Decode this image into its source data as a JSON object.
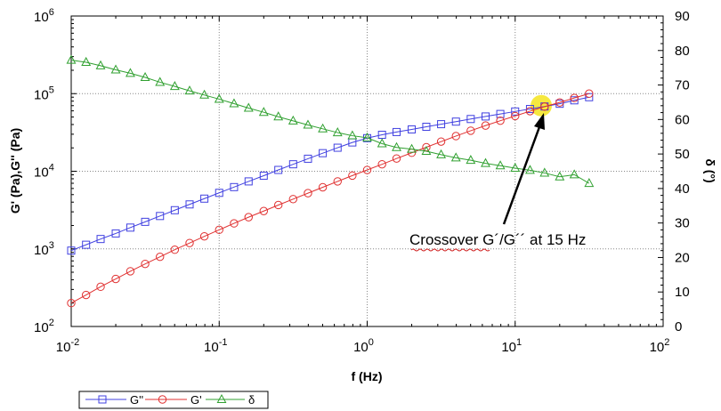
{
  "chart_data": {
    "type": "scatter",
    "xlabel": "f (Hz)",
    "ylabel": "G' (Pa),G'' (Pa)",
    "y2label": "δ (°)",
    "xscale": "log",
    "yscale": "log",
    "xlim": [
      0.01,
      100
    ],
    "ylim": [
      100,
      1000000
    ],
    "y2lim": [
      0,
      90
    ],
    "grid": true,
    "legend_position": "bottom-left",
    "x_ticks": [
      {
        "base": "10",
        "exp": "-2"
      },
      {
        "base": "10",
        "exp": "-1"
      },
      {
        "base": "10",
        "exp": "0"
      },
      {
        "base": "10",
        "exp": "1"
      },
      {
        "base": "10",
        "exp": "2"
      }
    ],
    "y_ticks": [
      {
        "base": "10",
        "exp": "2"
      },
      {
        "base": "10",
        "exp": "3"
      },
      {
        "base": "10",
        "exp": "4"
      },
      {
        "base": "10",
        "exp": "5"
      },
      {
        "base": "10",
        "exp": "6"
      }
    ],
    "y2_ticks": [
      "0",
      "10",
      "20",
      "30",
      "40",
      "50",
      "60",
      "70",
      "80",
      "90"
    ],
    "series": [
      {
        "name": "G''",
        "color": "#4040e0",
        "marker": "square",
        "axis": "left",
        "x": [
          0.01,
          0.0126,
          0.0158,
          0.02,
          0.0251,
          0.0316,
          0.0398,
          0.0501,
          0.0631,
          0.0794,
          0.1,
          0.126,
          0.158,
          0.2,
          0.251,
          0.316,
          0.398,
          0.501,
          0.631,
          0.794,
          1,
          1.26,
          1.58,
          2,
          2.51,
          3.16,
          3.98,
          5.01,
          6.31,
          7.94,
          10,
          12.6,
          15.8,
          20,
          25.1,
          31.6
        ],
        "y": [
          950,
          1130,
          1340,
          1580,
          1880,
          2230,
          2650,
          3150,
          3740,
          4440,
          5270,
          6250,
          7400,
          8770,
          10400,
          12300,
          14500,
          17100,
          20100,
          23500,
          26700,
          29500,
          32000,
          34600,
          37400,
          40400,
          43600,
          47100,
          50800,
          54700,
          58900,
          63400,
          68300,
          74000,
          82000,
          90000
        ]
      },
      {
        "name": "G'",
        "color": "#e03030",
        "marker": "circle",
        "axis": "left",
        "x": [
          0.01,
          0.0126,
          0.0158,
          0.02,
          0.0251,
          0.0316,
          0.0398,
          0.0501,
          0.0631,
          0.0794,
          0.1,
          0.126,
          0.158,
          0.2,
          0.251,
          0.316,
          0.398,
          0.501,
          0.631,
          0.794,
          1,
          1.26,
          1.58,
          2,
          2.51,
          3.16,
          3.98,
          5.01,
          6.31,
          7.94,
          10,
          12.6,
          15.8,
          20,
          25.1,
          31.6
        ],
        "y": [
          200,
          255,
          325,
          410,
          515,
          640,
          790,
          975,
          1190,
          1450,
          1760,
          2130,
          2560,
          3070,
          3670,
          4380,
          5220,
          6220,
          7400,
          8790,
          10400,
          12300,
          14600,
          17300,
          20400,
          24100,
          28400,
          33300,
          38800,
          44800,
          51500,
          59500,
          68000,
          77000,
          88000,
          100000
        ]
      },
      {
        "name": "δ",
        "color": "#30a030",
        "marker": "triangle",
        "axis": "right",
        "x": [
          0.01,
          0.0126,
          0.0158,
          0.02,
          0.0251,
          0.0316,
          0.0398,
          0.0501,
          0.0631,
          0.0794,
          0.1,
          0.126,
          0.158,
          0.2,
          0.251,
          0.316,
          0.398,
          0.501,
          0.631,
          0.794,
          1,
          1.26,
          1.58,
          2,
          2.51,
          3.16,
          3.98,
          5.01,
          6.31,
          7.94,
          10,
          12.6,
          15.8,
          20,
          25.1,
          31.6
        ],
        "y": [
          77.2,
          76.6,
          75.6,
          74.4,
          73.4,
          72.2,
          70.8,
          69.6,
          68.3,
          67.1,
          65.9,
          64.6,
          63.3,
          62.1,
          60.8,
          59.6,
          58.4,
          57.3,
          56.2,
          55.3,
          54.7,
          53.0,
          51.9,
          51.4,
          50.8,
          49.8,
          48.9,
          48.2,
          47.3,
          46.6,
          45.9,
          45.3,
          44.5,
          43.4,
          44.0,
          41.5
        ]
      }
    ],
    "annotations": [
      {
        "text": "Crossover G´/G´´ at 15 Hz",
        "x": 15,
        "y": 70000,
        "highlight_color": "#f5e62a"
      }
    ]
  }
}
